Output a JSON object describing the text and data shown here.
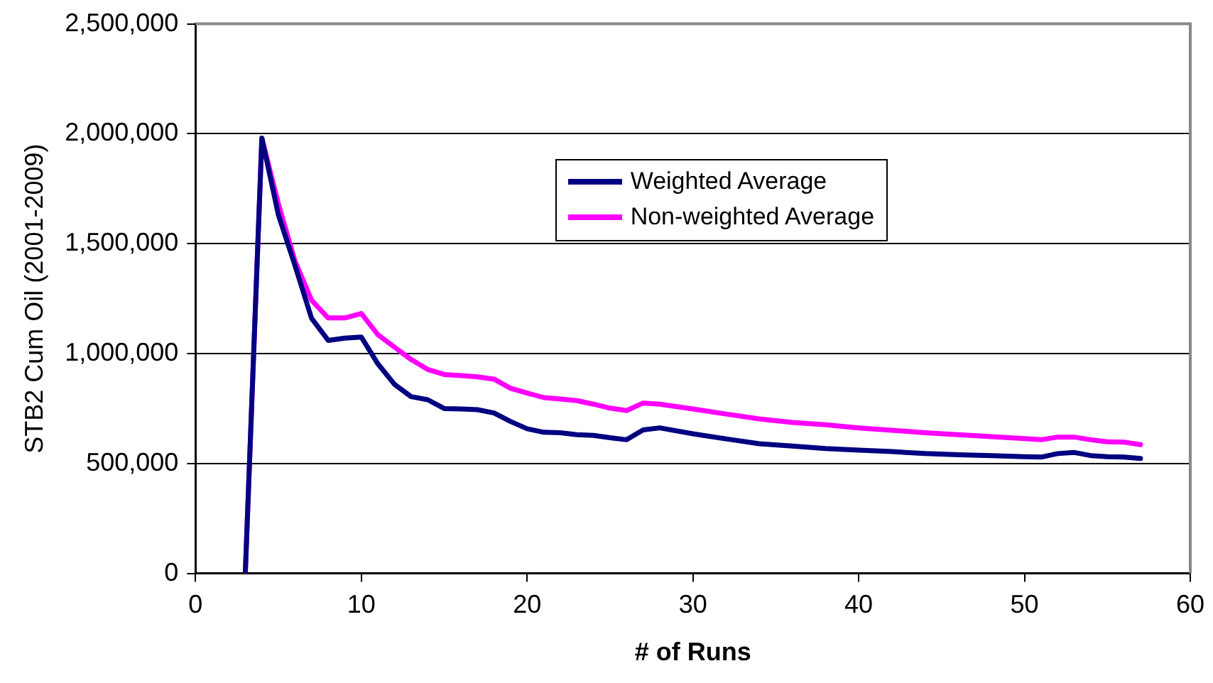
{
  "chart_data": {
    "type": "line",
    "xlabel": "# of Runs",
    "ylabel": "STB2 Cum Oil (2001-2009)",
    "x": [
      3,
      4,
      5,
      6,
      7,
      8,
      9,
      10,
      11,
      12,
      13,
      14,
      15,
      16,
      17,
      18,
      19,
      20,
      21,
      22,
      23,
      24,
      25,
      26,
      27,
      28,
      30,
      32,
      34,
      36,
      38,
      40,
      42,
      44,
      46,
      48,
      50,
      51,
      52,
      53,
      54,
      55,
      56,
      57
    ],
    "series": [
      {
        "name": "Weighted Average",
        "color": "#000080",
        "values": [
          0,
          1980000,
          1630000,
          1400000,
          1160000,
          1060000,
          1070000,
          1075000,
          953000,
          860000,
          804000,
          790000,
          750000,
          748000,
          745000,
          730000,
          691000,
          658000,
          642000,
          640000,
          631000,
          628000,
          617000,
          608000,
          653000,
          662000,
          635000,
          612000,
          590000,
          579000,
          568000,
          561000,
          554000,
          545000,
          540000,
          536000,
          531000,
          529000,
          545000,
          550000,
          536000,
          531000,
          529000,
          523000
        ]
      },
      {
        "name": "Non-weighted Average",
        "color": "#ff00ff",
        "values": [
          0,
          1980000,
          1680000,
          1420000,
          1243000,
          1162000,
          1162000,
          1182000,
          1086000,
          1029000,
          973000,
          928000,
          905000,
          900000,
          894000,
          884000,
          842000,
          820000,
          800000,
          793000,
          786000,
          770000,
          752000,
          741000,
          775000,
          770000,
          748000,
          725000,
          703000,
          687000,
          676000,
          662000,
          651000,
          640000,
          631000,
          622000,
          613000,
          608000,
          620000,
          620000,
          608000,
          599000,
          597000,
          586000
        ]
      }
    ],
    "xlim": [
      0,
      60
    ],
    "xticks": [
      0,
      10,
      20,
      30,
      40,
      50,
      60
    ],
    "ylim": [
      0,
      2500000
    ],
    "yticks": [
      {
        "value": 0,
        "label": "0"
      },
      {
        "value": 500000,
        "label": "500,000"
      },
      {
        "value": 1000000,
        "label": "1,000,000"
      },
      {
        "value": 1500000,
        "label": "1,500,000"
      },
      {
        "value": 2000000,
        "label": "2,000,000"
      },
      {
        "value": 2500000,
        "label": "2,500,000"
      }
    ],
    "grid": "y",
    "legend": "top",
    "marker": "none",
    "line_style": "solid"
  }
}
